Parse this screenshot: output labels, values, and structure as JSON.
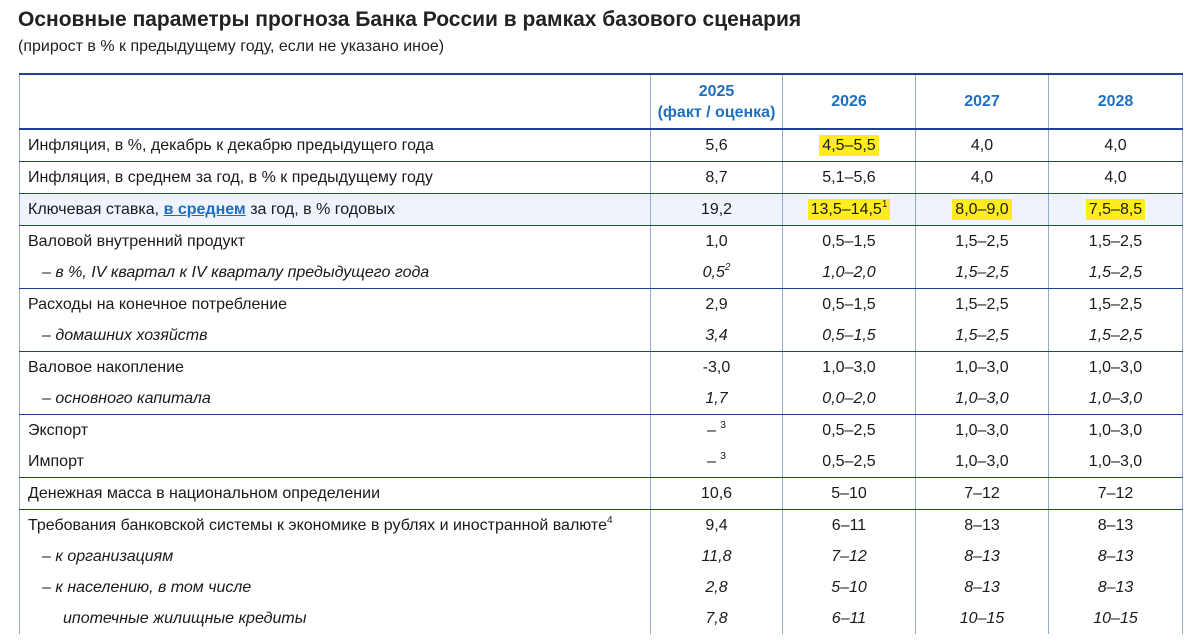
{
  "header": {
    "title": "Основные параметры прогноза Банка России в рамках базового сценария",
    "subtitle": "(прирост в % к предыдущему году, если не указано иное)"
  },
  "columns": {
    "c2025_year": "2025",
    "c2025_note": "(факт / оценка)",
    "c2026": "2026",
    "c2027": "2027",
    "c2028": "2028"
  },
  "rows": {
    "infl_dec": {
      "label": "Инфляция, в %, декабрь к декабрю предыдущего года",
      "values": [
        "5,6",
        "4,5–5,5",
        "4,0",
        "4,0"
      ]
    },
    "infl_avg": {
      "label": "Инфляция, в среднем за год, в % к предыдущему году",
      "values": [
        "8,7",
        "5,1–5,6",
        "4,0",
        "4,0"
      ]
    },
    "key_rate": {
      "label_pre": "Ключевая ставка, ",
      "label_link": "в среднем",
      "label_post": " за год, в % годовых",
      "values": [
        "19,2",
        "13,5–14,5",
        "8,0–9,0",
        "7,5–8,5"
      ],
      "footnote": "1"
    },
    "gdp": {
      "label": "Валовой внутренний продукт",
      "values": [
        "1,0",
        "0,5–1,5",
        "1,5–2,5",
        "1,5–2,5"
      ]
    },
    "gdp_q4": {
      "label": "– в %, IV квартал к IV кварталу предыдущего года",
      "values": [
        "0,5",
        "1,0–2,0",
        "1,5–2,5",
        "1,5–2,5"
      ],
      "footnote": "2"
    },
    "consumption": {
      "label": "Расходы на конечное потребление",
      "values": [
        "2,9",
        "0,5–1,5",
        "1,5–2,5",
        "1,5–2,5"
      ]
    },
    "households": {
      "label": "– домашних хозяйств",
      "values": [
        "3,4",
        "0,5–1,5",
        "1,5–2,5",
        "1,5–2,5"
      ]
    },
    "accumulation": {
      "label": "Валовое накопление",
      "values": [
        "-3,0",
        "1,0–3,0",
        "1,0–3,0",
        "1,0–3,0"
      ]
    },
    "fixed_capital": {
      "label": "– основного капитала",
      "values": [
        "1,7",
        "0,0–2,0",
        "1,0–3,0",
        "1,0–3,0"
      ]
    },
    "export": {
      "label": "Экспорт",
      "values": [
        "–",
        "0,5–2,5",
        "1,0–3,0",
        "1,0–3,0"
      ],
      "footnote": "3"
    },
    "import": {
      "label": "Импорт",
      "values": [
        "–",
        "0,5–2,5",
        "1,0–3,0",
        "1,0–3,0"
      ],
      "footnote": "3"
    },
    "money": {
      "label": "Денежная масса в национальном определении",
      "values": [
        "10,6",
        "5–10",
        "7–12",
        "7–12"
      ]
    },
    "claims": {
      "label": "Требования банковской системы к экономике в рублях и иностранной валюте",
      "values": [
        "9,4",
        "6–11",
        "8–13",
        "8–13"
      ],
      "footnote": "4"
    },
    "orgs": {
      "label": "– к организациям",
      "values": [
        "11,8",
        "7–12",
        "8–13",
        "8–13"
      ]
    },
    "population": {
      "label": "– к населению, в том числе",
      "values": [
        "2,8",
        "5–10",
        "8–13",
        "8–13"
      ]
    },
    "mortgage": {
      "label": "ипотечные жилищные кредиты",
      "values": [
        "7,8",
        "6–11",
        "10–15",
        "10–15"
      ]
    }
  },
  "colors": {
    "header_text": "#1e6fc0",
    "rule": "#1f3f99",
    "highlight": "#ffec1f",
    "row_tint": "#eef3fc"
  }
}
